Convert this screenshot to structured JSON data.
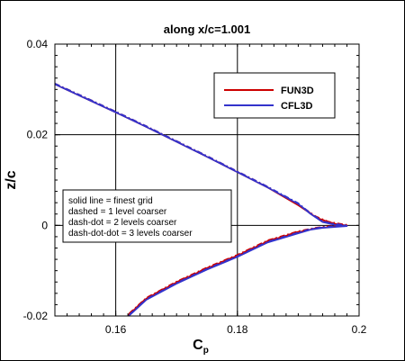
{
  "chart_data": {
    "type": "line",
    "title": "along x/c=1.001",
    "xlabel": "C",
    "xlabel_sub": "p",
    "ylabel": "z/c",
    "xlim": [
      0.15,
      0.2
    ],
    "ylim": [
      -0.02,
      0.04
    ],
    "xticks": [
      0.16,
      0.18,
      0.2
    ],
    "xtick_labels": [
      "0.16",
      "0.18",
      "0.2"
    ],
    "yticks": [
      -0.02,
      0,
      0.02,
      0.04
    ],
    "ytick_labels": [
      "-0.02",
      "0",
      "0.02",
      "0.04"
    ],
    "grid": true,
    "legend_position": "top-right",
    "annotation_lines": [
      "solid line = finest grid",
      "dashed = 1 level coarser",
      "dash-dot = 2 levels coarser",
      "dash-dot-dot = 3 levels coarser"
    ],
    "series": [
      {
        "name": "FUN3D",
        "color": "#cc0000",
        "x": [
          0.15,
          0.155,
          0.16,
          0.165,
          0.17,
          0.175,
          0.18,
          0.185,
          0.19,
          0.193,
          0.195,
          0.197,
          0.198,
          0.197,
          0.195,
          0.193,
          0.19,
          0.185,
          0.18,
          0.175,
          0.17,
          0.165,
          0.162
        ],
        "y": [
          0.0312,
          0.0281,
          0.025,
          0.0218,
          0.0185,
          0.0152,
          0.0118,
          0.0084,
          0.0045,
          0.0018,
          0.0007,
          0.0002,
          0.0,
          -0.0001,
          -0.0003,
          -0.0006,
          -0.0014,
          -0.0034,
          -0.0066,
          -0.0094,
          -0.0125,
          -0.0161,
          -0.0198
        ]
      },
      {
        "name": "CFL3D",
        "color": "#3333cc",
        "x": [
          0.15,
          0.155,
          0.16,
          0.165,
          0.17,
          0.175,
          0.18,
          0.185,
          0.19,
          0.192,
          0.194,
          0.196,
          0.198,
          0.196,
          0.194,
          0.192,
          0.19,
          0.185,
          0.18,
          0.175,
          0.17,
          0.165,
          0.162
        ],
        "y": [
          0.0313,
          0.0282,
          0.0251,
          0.0219,
          0.0186,
          0.0153,
          0.0119,
          0.0085,
          0.0049,
          0.0027,
          0.0009,
          0.0003,
          0.0,
          -0.0002,
          -0.0004,
          -0.0008,
          -0.0016,
          -0.0036,
          -0.0068,
          -0.0096,
          -0.0127,
          -0.0163,
          -0.02
        ]
      }
    ]
  }
}
